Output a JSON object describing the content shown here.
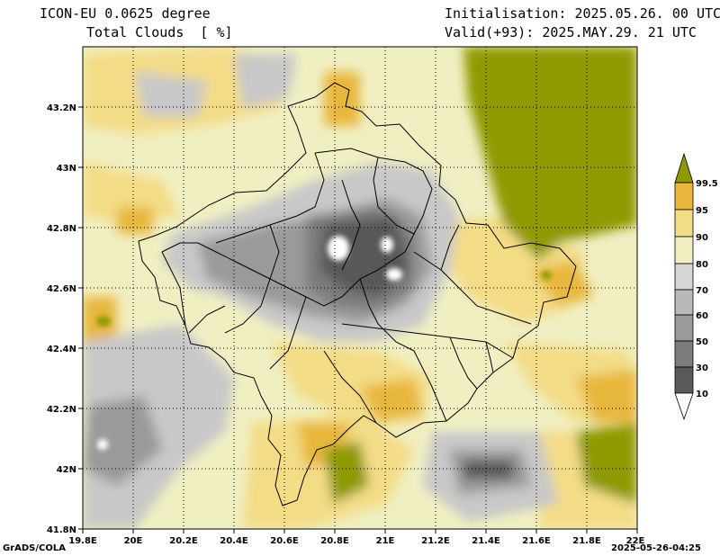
{
  "header": {
    "model": "ICON-EU 0.0625 degree",
    "variable": "Total Clouds  [ %]",
    "initialisation": "Initialisation: 2025.05.26. 00 UTC",
    "valid": "Valid(+93): 2025.MAY.29. 21 UTC"
  },
  "footer": {
    "left": "GrADS/COLA",
    "right": "2025-05-26-04:25"
  },
  "axes": {
    "lon": {
      "min": 19.8,
      "max": 22.0,
      "ticks": [
        "19.8E",
        "20E",
        "20.2E",
        "20.4E",
        "20.6E",
        "20.8E",
        "21E",
        "21.2E",
        "21.4E",
        "21.6E",
        "21.8E",
        "22E"
      ]
    },
    "lat": {
      "min": 41.8,
      "max": 43.4,
      "ticks": [
        "41.8N",
        "42N",
        "42.2N",
        "42.4N",
        "42.6N",
        "42.8N",
        "43N",
        "43.2N"
      ]
    }
  },
  "colorbar": {
    "levels": [
      "10",
      "30",
      "50",
      "60",
      "70",
      "80",
      "90",
      "95",
      "99.5"
    ],
    "colors": [
      "#ffffff",
      "#595959",
      "#7c7c7c",
      "#9a9a9a",
      "#b9b9b9",
      "#d6d6d6",
      "#f0efc2",
      "#f3dc86",
      "#e8b73c",
      "#8f9a00"
    ]
  },
  "colors": {
    "grey_dark": "#595959",
    "grey_mid": "#9a9a9a",
    "grey_light": "#c8c8c8",
    "cream": "#f0efc2",
    "yellow": "#f3dc86",
    "orange": "#e8b73c",
    "olive": "#8f9a00"
  }
}
